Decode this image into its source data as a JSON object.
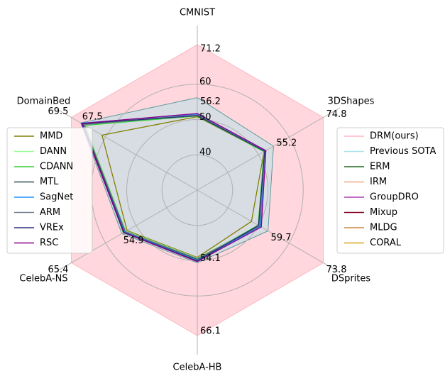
{
  "chart_data": {
    "type": "radar",
    "axes": [
      {
        "label": "CMNIST",
        "lim": [
          30,
          71.2
        ]
      },
      {
        "label": "3DShapes",
        "lim": [
          25.2,
          74.8
        ]
      },
      {
        "label": "DSprites",
        "lim": [
          41.7,
          73.8
        ]
      },
      {
        "label": "CelebA-HB",
        "lim": [
          42.1,
          66.1
        ]
      },
      {
        "label": "CelebA-NS",
        "lim": [
          39.2,
          65.4
        ]
      },
      {
        "label": "DomainBed",
        "lim": [
          42.8,
          69.5
        ]
      }
    ],
    "rticks": [
      40,
      50,
      60
    ],
    "grid": true,
    "series": [
      {
        "name": "DRM(ours)",
        "color": "#ffb6c1",
        "fill": true,
        "show_values": true,
        "values": [
          71.2,
          74.8,
          73.8,
          66.1,
          65.4,
          69.5
        ]
      },
      {
        "name": "Previous SOTA",
        "color": "#a8e4ea",
        "fill": true,
        "show_values": true,
        "values": [
          56.2,
          55.2,
          59.7,
          54.1,
          54.9,
          67.5
        ]
      },
      {
        "name": "ERM",
        "color": "#1f6b1f",
        "values": [
          51.5,
          52.0,
          57.8,
          53.6,
          54.3,
          67.2
        ]
      },
      {
        "name": "IRM",
        "color": "#f4a582",
        "values": [
          51.2,
          51.8,
          57.5,
          53.4,
          54.0,
          66.8
        ]
      },
      {
        "name": "GroupDRO",
        "color": "#b03cb0",
        "values": [
          51.6,
          52.2,
          57.9,
          53.7,
          54.4,
          67.3
        ]
      },
      {
        "name": "Mixup",
        "color": "#800020",
        "values": [
          51.3,
          51.9,
          57.6,
          53.8,
          54.2,
          67.0
        ]
      },
      {
        "name": "MLDG",
        "color": "#cd853f",
        "values": [
          51.0,
          51.7,
          57.3,
          53.5,
          54.1,
          66.9
        ]
      },
      {
        "name": "CORAL",
        "color": "#daa520",
        "values": [
          51.4,
          52.1,
          57.7,
          53.9,
          54.5,
          67.1
        ]
      },
      {
        "name": "MMD",
        "color": "#808000",
        "values": [
          50.8,
          51.5,
          55.5,
          53.2,
          53.8,
          63.0
        ]
      },
      {
        "name": "DANN",
        "color": "#98fb98",
        "values": [
          51.1,
          51.6,
          57.4,
          53.3,
          54.0,
          66.5
        ]
      },
      {
        "name": "CDANN",
        "color": "#32cd32",
        "values": [
          51.0,
          51.5,
          57.2,
          53.6,
          54.6,
          66.6
        ]
      },
      {
        "name": "MTL",
        "color": "#2f4f4f",
        "values": [
          51.2,
          51.9,
          57.6,
          53.5,
          54.2,
          67.0
        ]
      },
      {
        "name": "SagNet",
        "color": "#1e90ff",
        "values": [
          51.5,
          52.0,
          57.8,
          53.7,
          54.3,
          67.4
        ]
      },
      {
        "name": "ARM",
        "color": "#708090",
        "values": [
          51.3,
          51.8,
          57.5,
          53.4,
          54.1,
          66.8
        ]
      },
      {
        "name": "VREx",
        "color": "#2a2a7a",
        "values": [
          51.1,
          51.7,
          57.3,
          53.8,
          54.4,
          67.2
        ]
      },
      {
        "name": "RSC",
        "color": "#8b008b",
        "values": [
          51.7,
          52.2,
          58.0,
          53.9,
          54.5,
          67.3
        ]
      }
    ]
  }
}
